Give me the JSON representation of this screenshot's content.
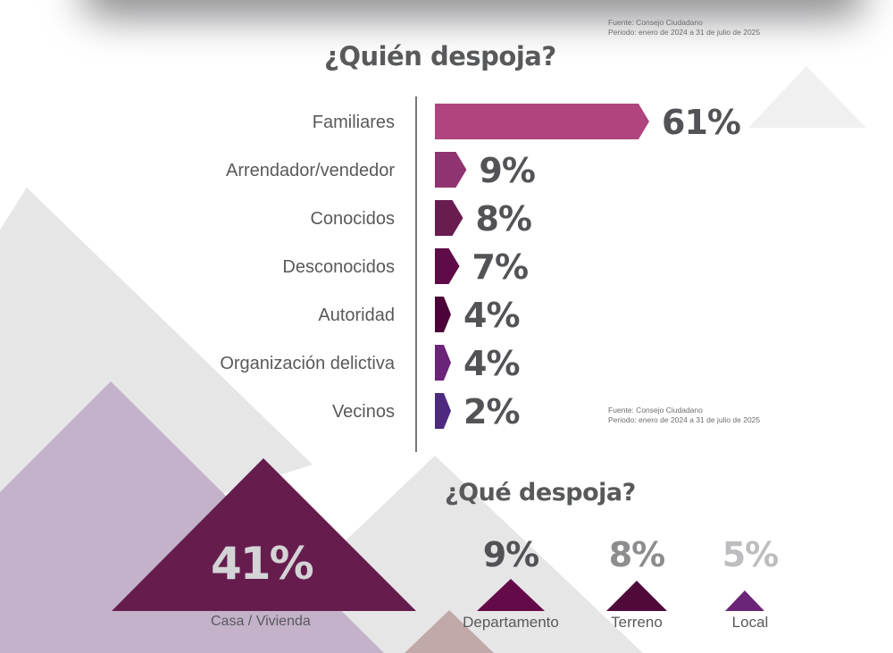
{
  "source_note": {
    "line1": "Fuente: Consejo Ciudadano",
    "line2": "Periodo: enero de 2024 a 31 de julio de 2025"
  },
  "who": {
    "title": "¿Quién despoja?"
  },
  "what": {
    "title": "¿Qué despoja?",
    "featured": {
      "value": "41%",
      "label": "Casa / Vivienda",
      "color": "#661d4e"
    },
    "items": [
      {
        "value": "9%",
        "label": "Departamento",
        "value_color": "#525256",
        "color": "#650a48"
      },
      {
        "value": "8%",
        "label": "Terreno",
        "value_color": "#8d8d90",
        "color": "#4f0a3b"
      },
      {
        "value": "5%",
        "label": "Local",
        "value_color": "#bdbdc0",
        "color": "#6a2478"
      }
    ]
  },
  "chart_data": [
    {
      "type": "bar",
      "orientation": "horizontal",
      "title": "¿Quién despoja?",
      "categories": [
        "Familiares",
        "Arrendador/vendedor",
        "Conocidos",
        "Desconocidos",
        "Autoridad",
        "Organización delictiva",
        "Vecinos"
      ],
      "values": [
        61,
        9,
        8,
        7,
        4,
        4,
        2
      ],
      "value_labels": [
        "61%",
        "9%",
        "8%",
        "7%",
        "4%",
        "4%",
        "2%"
      ],
      "colors": [
        "#b0447f",
        "#8f3470",
        "#6a1c50",
        "#5e0b47",
        "#4c0339",
        "#6a2478",
        "#4d2a80"
      ],
      "unit": "%",
      "xlim": [
        0,
        61
      ],
      "grid": false,
      "legend": "none"
    },
    {
      "type": "bar",
      "title": "¿Qué despoja?",
      "categories": [
        "Casa / Vivienda",
        "Departamento",
        "Terreno",
        "Local"
      ],
      "values": [
        41,
        9,
        8,
        5
      ],
      "value_labels": [
        "41%",
        "9%",
        "8%",
        "5%"
      ],
      "unit": "%"
    }
  ]
}
